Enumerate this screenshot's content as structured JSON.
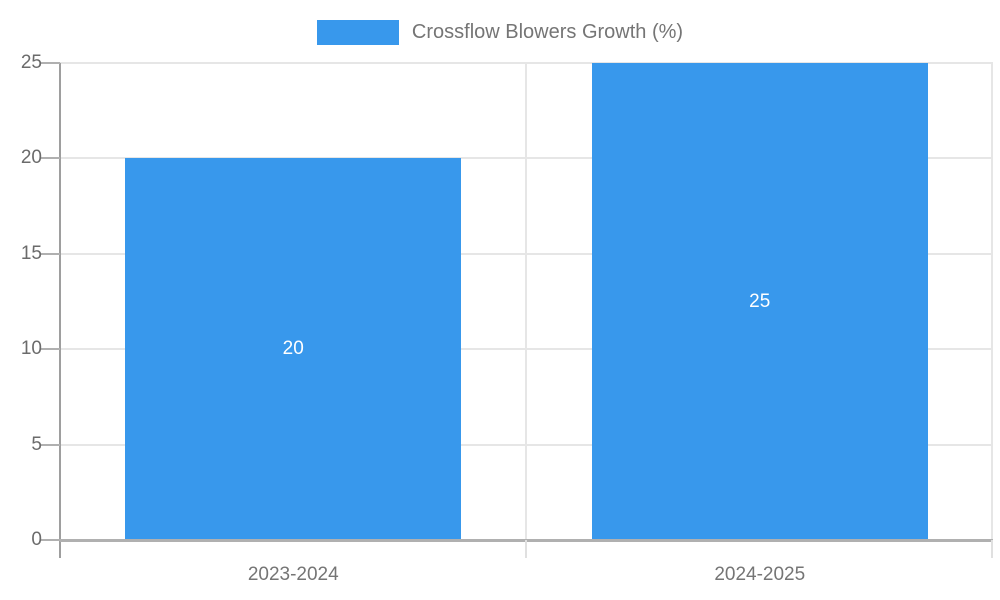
{
  "chart_data": {
    "type": "bar",
    "title": "",
    "categories": [
      "2023-2024",
      "2024-2025"
    ],
    "series": [
      {
        "name": "Crossflow Blowers Growth (%)",
        "values": [
          20,
          25
        ]
      }
    ],
    "bar_value_labels": [
      "20",
      "25"
    ],
    "xlabel": "",
    "ylabel": "",
    "ylim": [
      0,
      25
    ],
    "yticks": [
      0,
      5,
      10,
      15,
      20,
      25
    ],
    "grid": true,
    "legend_position": "top-center",
    "bar_width_fraction": 0.72
  },
  "legend": {
    "label": "Crossflow Blowers Growth (%)"
  },
  "colors": {
    "bar": "#3898ec",
    "bar_label_text": "#ffffff",
    "legend_text": "#757575",
    "y_label_text": "#6b6b6b",
    "x_label_text": "#757575",
    "axis_line": "#9e9e9e",
    "bottom_axis_line": "#b0b0b0",
    "tick_mark": "#b0b0b0",
    "minor_tick_below": "#e0e0e0",
    "gridline": "#e6e6e6",
    "background": "#ffffff"
  }
}
